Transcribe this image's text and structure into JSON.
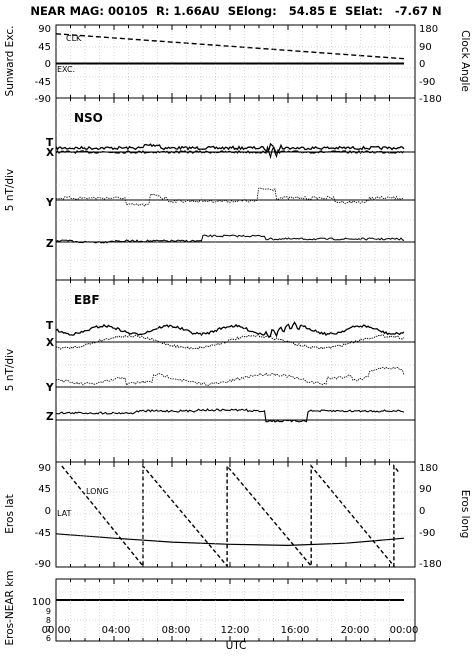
{
  "title": "NEAR MAG: 00105  R: 1.66AU  SElong:   54.85 E  SElat:   -7.67 N",
  "x_axis": {
    "label": "UTC",
    "ticks": [
      "00:00",
      "04:00",
      "08:00",
      "12:00",
      "16:00",
      "20:00",
      "00:00"
    ]
  },
  "chart_data": [
    {
      "type": "line",
      "panel": "sunward",
      "ylabel": "Sunward Exc.",
      "y2label": "Clock Angle",
      "ylim": [
        -90,
        90
      ],
      "y2lim": [
        -180,
        180
      ],
      "yticks": [
        "90",
        "45",
        "0",
        "-45",
        "-90"
      ],
      "y2ticks": [
        "180",
        "90",
        "0",
        "-90",
        "-180"
      ],
      "x_hours": [
        0,
        24
      ],
      "series": [
        {
          "name": "CLK",
          "axis": "right",
          "style": "dashed",
          "values": [
            155,
            25
          ]
        },
        {
          "name": "EXC.",
          "axis": "left",
          "style": "solid",
          "values": [
            0,
            0
          ]
        }
      ]
    },
    {
      "type": "line",
      "panel": "NSO",
      "name": "NSO",
      "ylabel": "5 nT/div",
      "components": [
        "T",
        "X",
        "Y",
        "Z"
      ]
    },
    {
      "type": "line",
      "panel": "EBF",
      "name": "EBF",
      "ylabel": "5 nT/div",
      "components": [
        "T",
        "X",
        "Y",
        "Z"
      ]
    },
    {
      "type": "line",
      "panel": "eros",
      "ylabel": "Eros lat",
      "y2label": "Eros long",
      "ylim": [
        -90,
        90
      ],
      "y2lim": [
        -180,
        180
      ],
      "yticks": [
        "90",
        "45",
        "0",
        "-45",
        "-90"
      ],
      "y2ticks": [
        "180",
        "90",
        "0",
        "-90",
        "-180"
      ],
      "series": [
        {
          "name": "LONG",
          "axis": "right",
          "style": "dashed",
          "x_hours": [
            0.4,
            6.0,
            6.0,
            11.8,
            11.8,
            17.6,
            17.6,
            23.3,
            23.3,
            23.6
          ],
          "values": [
            180,
            -180,
            180,
            -180,
            180,
            -180,
            180,
            -180,
            180,
            160
          ]
        },
        {
          "name": "LAT",
          "axis": "left",
          "style": "solid",
          "x_hours": [
            0,
            4,
            8,
            12,
            16,
            20,
            24
          ],
          "values": [
            -32,
            -40,
            -47,
            -51,
            -53,
            -49,
            -40
          ]
        }
      ]
    },
    {
      "type": "line",
      "panel": "distance",
      "ylabel": "Eros-NEAR km",
      "yticks": [
        "100",
        "9",
        "8",
        "7",
        "6"
      ],
      "series": [
        {
          "name": "",
          "style": "solid",
          "x_hours": [
            0,
            24
          ],
          "values": [
            100,
            100
          ]
        }
      ]
    }
  ],
  "colors": {
    "background": "#ffffff",
    "ink": "#000000",
    "grid": "#b5b5b5"
  }
}
